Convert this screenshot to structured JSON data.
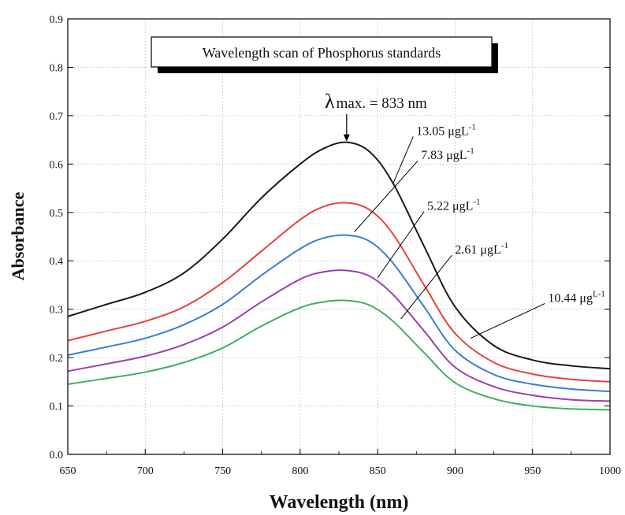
{
  "chart_data": {
    "type": "line",
    "title": "Wavelength scan of Phosphorus standards",
    "xlabel": "Wavelength (nm)",
    "ylabel": "Absorbance",
    "xlim": [
      650,
      1000
    ],
    "ylim": [
      0.0,
      0.9
    ],
    "grid": true,
    "x_ticks": [
      "650",
      "700",
      "750",
      "800",
      "850",
      "900",
      "950",
      "1000"
    ],
    "y_ticks": [
      "0.0",
      "0.1",
      "0.2",
      "0.3",
      "0.4",
      "0.5",
      "0.6",
      "0.7",
      "0.8",
      "0.9"
    ],
    "annotation": {
      "prefix": "λ",
      "text": "max. = 833 nm",
      "x": 830,
      "y": 0.645
    },
    "x": [
      650,
      675,
      700,
      725,
      750,
      775,
      800,
      815,
      830,
      845,
      860,
      880,
      900,
      925,
      950,
      975,
      1000
    ],
    "series": [
      {
        "name": "13.05 μgL",
        "sup": "-1",
        "color": "#1a1a1a",
        "values": [
          0.285,
          0.31,
          0.335,
          0.375,
          0.445,
          0.53,
          0.6,
          0.632,
          0.645,
          0.625,
          0.56,
          0.43,
          0.305,
          0.225,
          0.195,
          0.183,
          0.177
        ],
        "label_at": [
          875,
          0.66
        ],
        "leader_from": [
          860,
          0.56
        ]
      },
      {
        "name": "7.83 μgL",
        "sup": "-1",
        "color": "#e8413c",
        "values": [
          0.235,
          0.255,
          0.275,
          0.305,
          0.355,
          0.42,
          0.485,
          0.512,
          0.52,
          0.505,
          0.455,
          0.35,
          0.25,
          0.19,
          0.166,
          0.155,
          0.15
        ],
        "label_at": [
          878,
          0.61
        ],
        "leader_from": [
          835,
          0.46
        ]
      },
      {
        "name": "5.22 μgL",
        "sup": "-1",
        "color": "#3a7fd1",
        "values": [
          0.205,
          0.222,
          0.24,
          0.268,
          0.31,
          0.37,
          0.425,
          0.447,
          0.453,
          0.44,
          0.395,
          0.305,
          0.215,
          0.165,
          0.145,
          0.135,
          0.13
        ],
        "label_at": [
          882,
          0.505
        ],
        "leader_from": [
          850,
          0.365
        ]
      },
      {
        "name": "2.61 μgL",
        "sup": "-1",
        "color": "#9b3fb0",
        "values": [
          0.172,
          0.187,
          0.203,
          0.227,
          0.263,
          0.315,
          0.362,
          0.377,
          0.38,
          0.368,
          0.33,
          0.255,
          0.18,
          0.14,
          0.122,
          0.113,
          0.11
        ],
        "label_at": [
          900,
          0.415
        ],
        "leader_from": [
          865,
          0.28
        ]
      },
      {
        "name": "10.44 μg",
        "sup": "L-1",
        "color": "#3fae63",
        "values": [
          0.145,
          0.157,
          0.17,
          0.19,
          0.22,
          0.265,
          0.303,
          0.315,
          0.318,
          0.308,
          0.275,
          0.21,
          0.148,
          0.115,
          0.1,
          0.094,
          0.092
        ],
        "label_at": [
          960,
          0.315
        ],
        "leader_from": [
          910,
          0.24
        ]
      }
    ]
  }
}
